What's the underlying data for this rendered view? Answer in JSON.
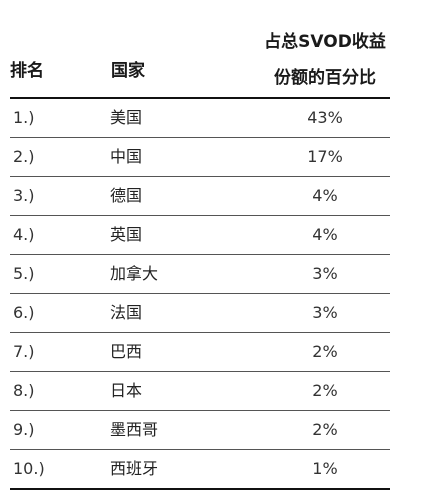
{
  "table": {
    "headers": {
      "rank": "排名",
      "country": "国家",
      "share_line1": "占总SVOD收益",
      "share_line2": "份额的百分比"
    },
    "rows": [
      {
        "rank": "1.)",
        "country": "美国",
        "share": "43%"
      },
      {
        "rank": "2.)",
        "country": "中国",
        "share": "17%"
      },
      {
        "rank": "3.)",
        "country": "德国",
        "share": "4%"
      },
      {
        "rank": "4.)",
        "country": "英国",
        "share": "4%"
      },
      {
        "rank": "5.)",
        "country": "加拿大",
        "share": "3%"
      },
      {
        "rank": "6.)",
        "country": "法国",
        "share": "3%"
      },
      {
        "rank": "7.)",
        "country": "巴西",
        "share": "2%"
      },
      {
        "rank": "8.)",
        "country": "日本",
        "share": "2%"
      },
      {
        "rank": "9.)",
        "country": "墨西哥",
        "share": "2%"
      },
      {
        "rank": "10.)",
        "country": "西班牙",
        "share": "1%"
      }
    ]
  }
}
